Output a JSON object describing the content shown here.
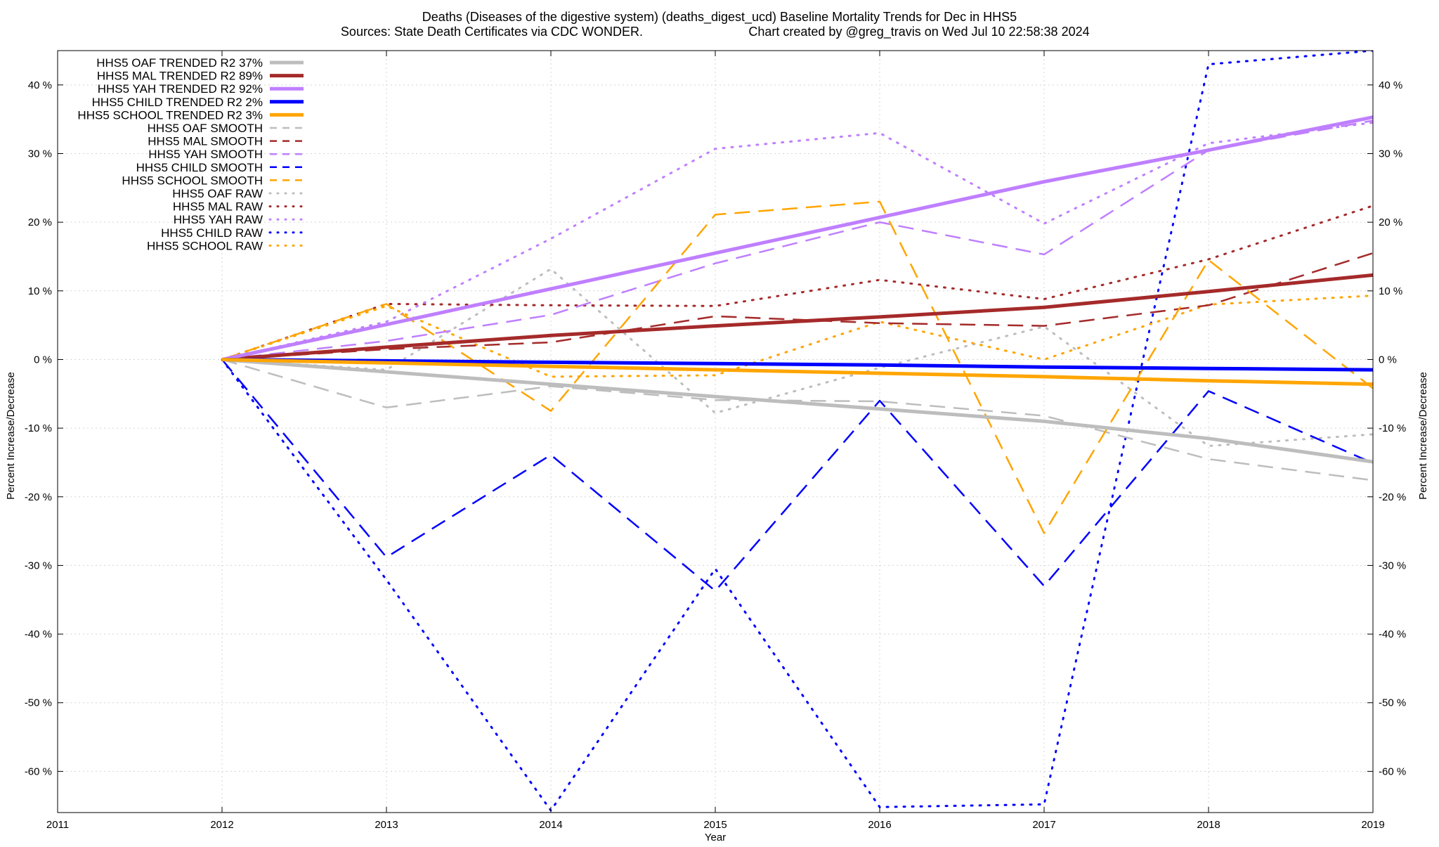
{
  "chart_data": {
    "type": "line",
    "title": "Deaths (Diseases of the digestive system) (deaths_digest_ucd)  Baseline Mortality Trends for Dec in HHS5",
    "subtitle_left": "Sources: State Death Certificates via CDC WONDER.",
    "subtitle_right": "Chart created by @greg_travis on Wed Jul 10 22:58:38 2024",
    "xlabel": "Year",
    "ylabel": "Percent Increase/Decrease",
    "xlim": [
      2011,
      2019
    ],
    "ylim": [
      -66,
      45
    ],
    "x_ticks": [
      2011,
      2012,
      2013,
      2014,
      2015,
      2016,
      2017,
      2018,
      2019
    ],
    "x_tick_labels": [
      "2011",
      "2012",
      "2013",
      "2014",
      "2015",
      "2016",
      "2017",
      "2018",
      "2019"
    ],
    "y_ticks": [
      -60,
      -50,
      -40,
      -30,
      -20,
      -10,
      0,
      10,
      20,
      30,
      40
    ],
    "y_tick_labels": [
      "-60 %",
      "-50 %",
      "-40 %",
      "-30 %",
      "-20 %",
      "-10 %",
      "0 %",
      "10 %",
      "20 %",
      "30 %",
      "40 %"
    ],
    "grid": true,
    "legend_position": "top-left",
    "x": [
      2012,
      2013,
      2014,
      2015,
      2016,
      2017,
      2018,
      2019
    ],
    "series": [
      {
        "name": "HHS5 OAF TRENDED R2  37%",
        "style": "solid",
        "color": "#bdbdbd",
        "values": [
          0,
          -1.8,
          -3.6,
          -5.4,
          -7.2,
          -9.0,
          -11.5,
          -14.9
        ]
      },
      {
        "name": "HHS5 MAL TRENDED R2  89%",
        "style": "solid",
        "color": "#a52a2a",
        "values": [
          0,
          1.8,
          3.5,
          4.9,
          6.2,
          7.6,
          9.9,
          12.3
        ]
      },
      {
        "name": "HHS5 YAH TRENDED R2  92%",
        "style": "solid",
        "color": "#bf7fff",
        "values": [
          0,
          5.1,
          10.3,
          15.5,
          20.7,
          25.9,
          30.5,
          35.3
        ]
      },
      {
        "name": "HHS5 CHILD TRENDED R2   2%",
        "style": "solid",
        "color": "#0000ff",
        "values": [
          0,
          -0.2,
          -0.4,
          -0.6,
          -0.8,
          -1.1,
          -1.3,
          -1.5
        ]
      },
      {
        "name": "HHS5 SCHOOL TRENDED R2   3%",
        "style": "solid",
        "color": "#ffa500",
        "values": [
          0,
          -0.5,
          -1.0,
          -1.5,
          -2.0,
          -2.5,
          -3.1,
          -3.6
        ]
      },
      {
        "name": "HHS5 OAF SMOOTH",
        "style": "dashed",
        "color": "#bdbdbd",
        "values": [
          0,
          -7.0,
          -3.9,
          -5.9,
          -6.1,
          -8.2,
          -14.5,
          -17.6
        ]
      },
      {
        "name": "HHS5 MAL SMOOTH",
        "style": "dashed",
        "color": "#a52a2a",
        "values": [
          0,
          1.5,
          2.5,
          6.3,
          5.3,
          4.9,
          7.9,
          15.5
        ]
      },
      {
        "name": "HHS5 YAH SMOOTH",
        "style": "dashed",
        "color": "#bf7fff",
        "values": [
          0,
          2.7,
          6.5,
          14.0,
          20.0,
          15.3,
          30.5,
          34.8
        ]
      },
      {
        "name": "HHS5 CHILD SMOOTH",
        "style": "dashed",
        "color": "#0000ff",
        "values": [
          0,
          -28.8,
          -13.9,
          -33.7,
          -6.0,
          -33.0,
          -4.6,
          -15.1
        ]
      },
      {
        "name": "HHS5 SCHOOL SMOOTH",
        "style": "dashed",
        "color": "#ffa500",
        "values": [
          0,
          8.1,
          -7.5,
          21.1,
          23.0,
          -25.3,
          14.5,
          -4.2
        ]
      },
      {
        "name": "HHS5 OAF RAW",
        "style": "dotted",
        "color": "#bdbdbd",
        "values": [
          0,
          -1.5,
          13.2,
          -7.8,
          -1.2,
          4.8,
          -12.6,
          -10.9
        ]
      },
      {
        "name": "HHS5 MAL RAW",
        "style": "dotted",
        "color": "#a52a2a",
        "values": [
          0,
          8.1,
          7.9,
          7.8,
          11.6,
          8.8,
          14.6,
          22.4
        ]
      },
      {
        "name": "HHS5 YAH RAW",
        "style": "dotted",
        "color": "#bf7fff",
        "values": [
          0,
          5.5,
          17.6,
          30.7,
          33.0,
          19.8,
          31.5,
          34.5
        ]
      },
      {
        "name": "HHS5 CHILD RAW",
        "style": "dotted",
        "color": "#0000ff",
        "values": [
          0,
          -32.1,
          -65.7,
          -30.5,
          -65.2,
          -64.8,
          43.0,
          45.0
        ]
      },
      {
        "name": "HHS5 SCHOOL RAW",
        "style": "dotted",
        "color": "#ffa500",
        "values": [
          0,
          7.8,
          -2.5,
          -2.3,
          5.5,
          0.0,
          8.0,
          9.3
        ]
      }
    ]
  }
}
